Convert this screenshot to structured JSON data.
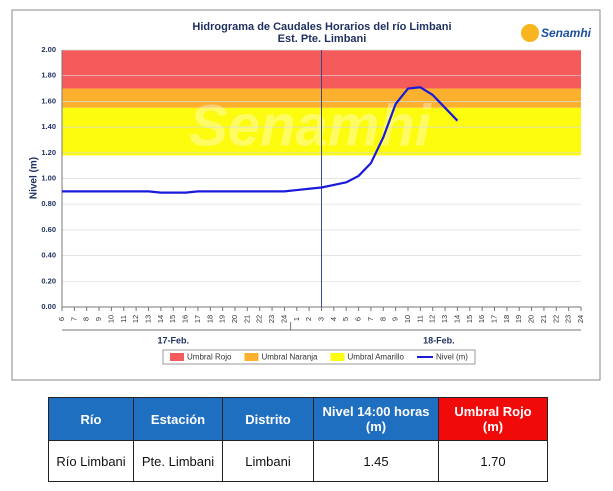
{
  "chart_data": {
    "type": "line",
    "title": "Hidrograma de Caudales Horarios del río Limbani",
    "subtitle": "Est. Pte. Limbani",
    "logo": "Senamhi",
    "watermark": "Senamhi",
    "y_label": "Nivel (m)",
    "categories": [
      "6",
      "7",
      "8",
      "9",
      "10",
      "11",
      "12",
      "13",
      "14",
      "15",
      "16",
      "17",
      "18",
      "19",
      "20",
      "21",
      "22",
      "23",
      "24",
      "1",
      "2",
      "3",
      "4",
      "5",
      "6",
      "7",
      "8",
      "9",
      "10",
      "11",
      "12",
      "13",
      "14",
      "15",
      "16",
      "17",
      "18",
      "19",
      "20",
      "21",
      "22",
      "23",
      "24"
    ],
    "day_labels": [
      {
        "label": "17-Feb.",
        "span": [
          0,
          18
        ]
      },
      {
        "label": "18-Feb.",
        "span": [
          19,
          42
        ]
      }
    ],
    "series": [
      {
        "name": "Nivel (m)",
        "color": "#1a1adb",
        "values": [
          0.9,
          0.9,
          0.9,
          0.9,
          0.9,
          0.9,
          0.9,
          0.9,
          0.89,
          0.89,
          0.89,
          0.9,
          0.9,
          0.9,
          0.9,
          0.9,
          0.9,
          0.9,
          0.9,
          0.91,
          0.92,
          0.93,
          0.95,
          0.97,
          1.02,
          1.12,
          1.32,
          1.58,
          1.7,
          1.71,
          1.65,
          1.55,
          1.45,
          null,
          null,
          null,
          null,
          null,
          null,
          null,
          null,
          null,
          null
        ]
      }
    ],
    "thresholds": [
      {
        "name": "Umbral Rojo",
        "color": "#f65b5b",
        "range": [
          1.7,
          2.0
        ]
      },
      {
        "name": "Umbral Naranja",
        "color": "#fbb02e",
        "range": [
          1.55,
          1.7
        ]
      },
      {
        "name": "Umbral Amarillo",
        "color": "#fdfb0e",
        "range": [
          1.18,
          1.55
        ]
      }
    ],
    "marker_line": 21,
    "ylim": [
      0,
      2
    ],
    "yticks": [
      {
        "value": 0,
        "label": "0.00"
      },
      {
        "value": 0.2,
        "label": "0.20"
      },
      {
        "value": 0.4,
        "label": "0.40"
      },
      {
        "value": 0.6,
        "label": "0.60"
      },
      {
        "value": 0.8,
        "label": "0.80"
      },
      {
        "value": 1,
        "label": "1.00"
      },
      {
        "value": 1.2,
        "label": "1.20"
      },
      {
        "value": 1.4,
        "label": "1.40"
      },
      {
        "value": 1.6,
        "label": "1.60"
      },
      {
        "value": 1.8,
        "label": "1.80"
      },
      {
        "value": 2,
        "label": "2.00"
      }
    ],
    "grid": true
  },
  "table": {
    "headers": [
      "Río",
      "Estación",
      "Distrito",
      "Nivel 14:00 horas (m)",
      "Umbral Rojo (m)"
    ],
    "rows": [
      [
        "Río Limbani",
        "Pte. Limbani",
        "Limbani",
        "1.45",
        "1.70"
      ]
    ]
  }
}
